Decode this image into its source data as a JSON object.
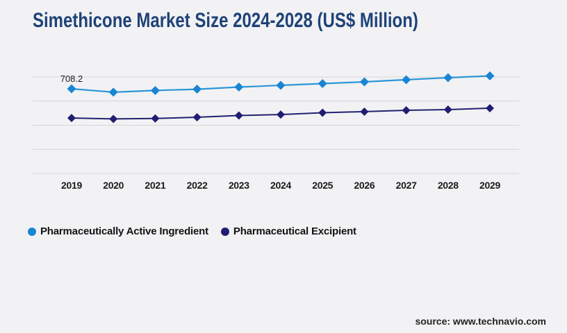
{
  "title": "Simethicone Market Size 2024-2028 (US$ Million)",
  "source": "source: www.technavio.com",
  "colors": {
    "background": "#f2f2f4",
    "title_text": "#1f4278",
    "gridline": "#d5d5d9",
    "axis_label_text": "#1a1a1a",
    "data_label_text": "#1a1a1a",
    "active_ingredient_marker": "#1a85d2",
    "active_ingredient_line": "#2b96d8",
    "excipient_marker": "#201d73",
    "excipient_line": "#232070"
  },
  "legend": {
    "position": "bottom-left",
    "items": [
      {
        "label": "Pharmaceutically Active Ingredient",
        "color": "#1a85d2"
      },
      {
        "label": "Pharmaceutical Excipient",
        "color": "#201d73"
      }
    ]
  },
  "chart_data": {
    "type": "line",
    "title": "Simethicone Market Size 2024-2028 (US$ Million)",
    "xlabel": "",
    "ylabel": "",
    "y_axis_visible": false,
    "grid": "horizontal",
    "gridline_count": 5,
    "categories": [
      "2019",
      "2020",
      "2021",
      "2022",
      "2023",
      "2024",
      "2025",
      "2026",
      "2027",
      "2028",
      "2029"
    ],
    "series": [
      {
        "name": "Pharmaceutically Active Ingredient",
        "marker": "diamond",
        "color": "#1a85d2",
        "line_color": "#2b96d8",
        "values": [
          708.2,
          680,
          694,
          705,
          723,
          737,
          752,
          766,
          784,
          801,
          816
        ],
        "values_estimated_except_first": true
      },
      {
        "name": "Pharmaceutical Excipient",
        "marker": "diamond",
        "color": "#201d73",
        "line_color": "#232070",
        "values": [
          464,
          456,
          460,
          470,
          485,
          493,
          508,
          517,
          528,
          534,
          546
        ],
        "values_estimated_except_first": false
      }
    ],
    "data_label": {
      "text": "708.2",
      "series_index": 0,
      "point_index": 0
    }
  }
}
